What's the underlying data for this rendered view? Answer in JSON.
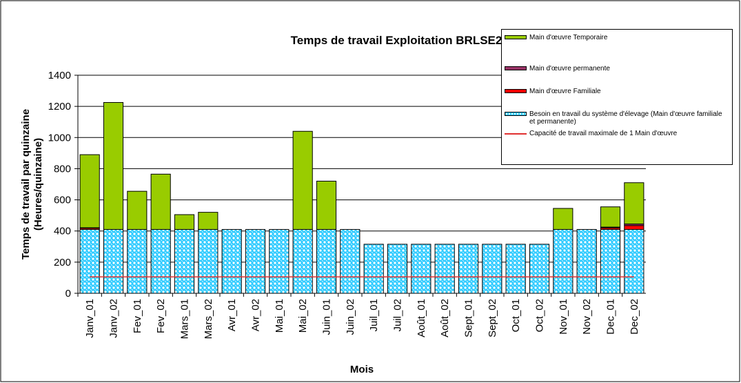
{
  "chart_data": {
    "type": "bar",
    "stacked": true,
    "title": "Temps de travail Exploitation BRLSE2",
    "xlabel": "Mois",
    "ylabel": [
      "Temps de travail par quinzaine",
      "(Heures/quinzaine)"
    ],
    "categories": [
      "Janv_01",
      "Janv_02",
      "Fev_01",
      "Fev_02",
      "Mars_01",
      "Mars_02",
      "Avr_01",
      "Avr_02",
      "Mai_01",
      "Mai_02",
      "Juin_01",
      "Juin_02",
      "Juil_01",
      "Juil_02",
      "Août_01",
      "Août_02",
      "Sept_01",
      "Sept_02",
      "Oct_01",
      "Oct_02",
      "Nov_01",
      "Nov_02",
      "Dec_01",
      "Dec_02"
    ],
    "series": [
      {
        "name": "Besoin en travail du système d'élevage (Main d'œuvre familiale et permanente)",
        "color": "#33ccff",
        "pattern": "dots",
        "values": [
          410,
          410,
          410,
          410,
          410,
          410,
          410,
          410,
          410,
          410,
          410,
          410,
          315,
          315,
          315,
          315,
          315,
          315,
          315,
          315,
          410,
          410,
          410,
          410
        ]
      },
      {
        "name": "Main d'œuvre Familiale",
        "color": "#ff0000",
        "values": [
          8,
          0,
          0,
          0,
          0,
          0,
          0,
          0,
          0,
          0,
          0,
          0,
          0,
          0,
          0,
          0,
          0,
          0,
          0,
          0,
          0,
          0,
          10,
          25
        ]
      },
      {
        "name": "Main d'œuvre permanente",
        "color": "#993366",
        "values": [
          3,
          0,
          0,
          0,
          0,
          0,
          0,
          0,
          0,
          0,
          0,
          0,
          0,
          0,
          0,
          0,
          0,
          0,
          0,
          0,
          0,
          0,
          5,
          10
        ]
      },
      {
        "name": "Main d'œuvre Temporaire",
        "color": "#99cc00",
        "values": [
          469,
          815,
          245,
          355,
          95,
          110,
          0,
          0,
          0,
          630,
          310,
          0,
          0,
          0,
          0,
          0,
          0,
          0,
          0,
          0,
          135,
          0,
          130,
          265
        ]
      },
      {
        "name": "Capacité de travail maximale de 1 Main d'œuvre",
        "color": "#e03030",
        "type": "line",
        "values": [
          105,
          105,
          105,
          105,
          105,
          105,
          105,
          105,
          105,
          105,
          105,
          105,
          105,
          105,
          105,
          105,
          105,
          105,
          105,
          105,
          105,
          105,
          105,
          105
        ]
      }
    ],
    "ylim": [
      0,
      1400
    ],
    "yticks": [
      0,
      200,
      400,
      600,
      800,
      1000,
      1200,
      1400
    ],
    "grid": true,
    "legend": "top-right"
  }
}
